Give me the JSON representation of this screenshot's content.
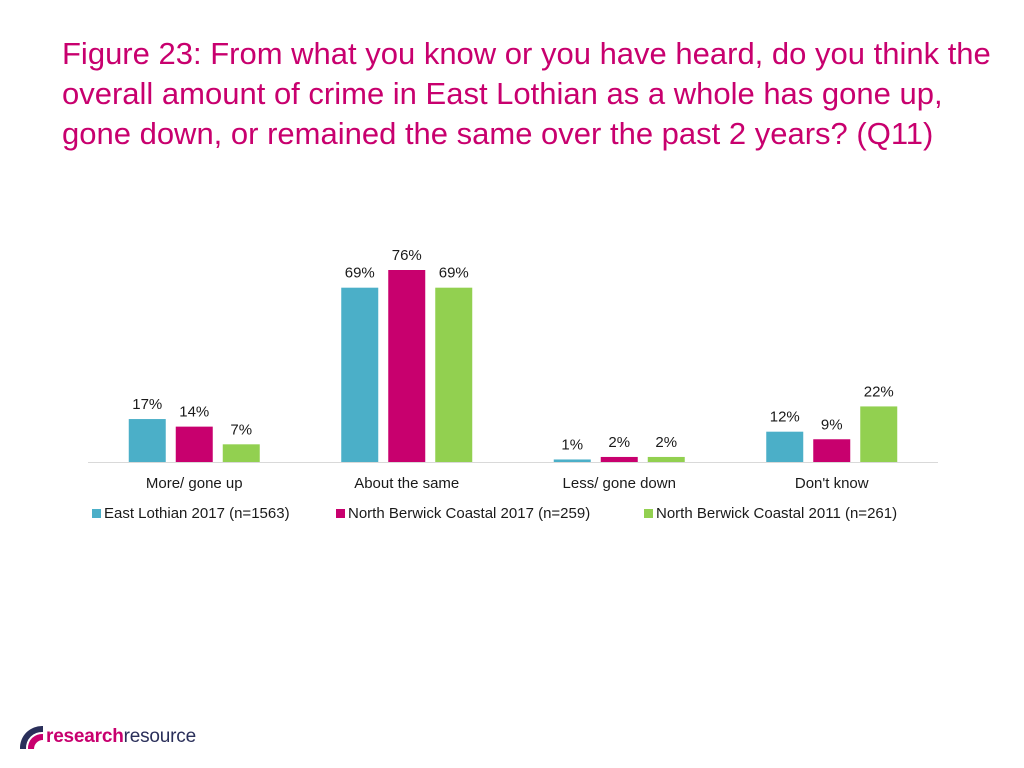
{
  "title": "Figure 23: From what you know or you have heard, do you think the overall amount of crime in East Lothian as a whole has gone up, gone down, or remained the same over the past 2 years? (Q11)",
  "chart_data": {
    "type": "bar",
    "categories": [
      "More/ gone up",
      "About the same",
      "Less/ gone down",
      "Don't know"
    ],
    "series": [
      {
        "name": "East Lothian 2017 (n=1563)",
        "color": "#4bafc8",
        "values": [
          17,
          69,
          1,
          12
        ],
        "labels": [
          "17%",
          "69%",
          "1%",
          "12%"
        ]
      },
      {
        "name": "North Berwick Coastal 2017 (n=259)",
        "color": "#c8006e",
        "values": [
          14,
          76,
          2,
          9
        ],
        "labels": [
          "14%",
          "76%",
          "2%",
          "9%"
        ]
      },
      {
        "name": "North Berwick Coastal 2011 (n=261)",
        "color": "#92d050",
        "values": [
          7,
          69,
          2,
          22
        ],
        "labels": [
          "7%",
          "69%",
          "2%",
          "22%"
        ]
      }
    ],
    "ylim": [
      0,
      76
    ],
    "grid": false,
    "legend": "bottom"
  },
  "logo": {
    "bold": "research",
    "light": "resource",
    "icon": "research-resource-logo-icon"
  }
}
